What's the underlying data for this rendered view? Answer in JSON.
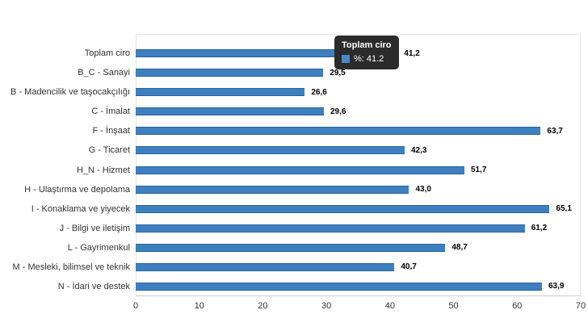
{
  "chart_data": {
    "type": "bar",
    "orientation": "horizontal",
    "title": "",
    "xlabel": "",
    "ylabel": "",
    "categories": [
      "Toplam ciro",
      "B_C - Sanayi",
      "B - Madencilik ve taşocakçılığı",
      "C - İmalat",
      "F - İnşaat",
      "G - Ticaret",
      "H_N - Hizmet",
      "H - Ulaştırma ve depolama",
      "I - Konaklama ve yiyecek",
      "J - Bilgi ve iletişim",
      "L - Gayrimenkul",
      "M - Mesleki, bilimsel ve teknik",
      "N - İdari ve destek"
    ],
    "series": [
      {
        "name": "%",
        "values": [
          41.2,
          29.5,
          26.6,
          29.6,
          63.7,
          42.3,
          51.7,
          43.0,
          65.1,
          61.2,
          48.7,
          40.7,
          63.9
        ],
        "value_labels": [
          "41,2",
          "29,5",
          "26,6",
          "29,6",
          "63,7",
          "42,3",
          "51,7",
          "43,0",
          "65,1",
          "61,2",
          "48,7",
          "40,7",
          "63,9"
        ]
      }
    ],
    "xlim": [
      0,
      70
    ],
    "x_ticks": [
      "0",
      "10",
      "20",
      "30",
      "40",
      "50",
      "60",
      "70"
    ],
    "grid": false,
    "legend": "none",
    "bar_color": "#3e80bf",
    "bar_border_color": "#27629b"
  },
  "tooltip": {
    "title": "Toplam ciro",
    "series_name": "%",
    "value": "41.2",
    "text": "%: 41.2",
    "swatch_color": "#4d87c7",
    "background_color": "#2b2b2b"
  }
}
